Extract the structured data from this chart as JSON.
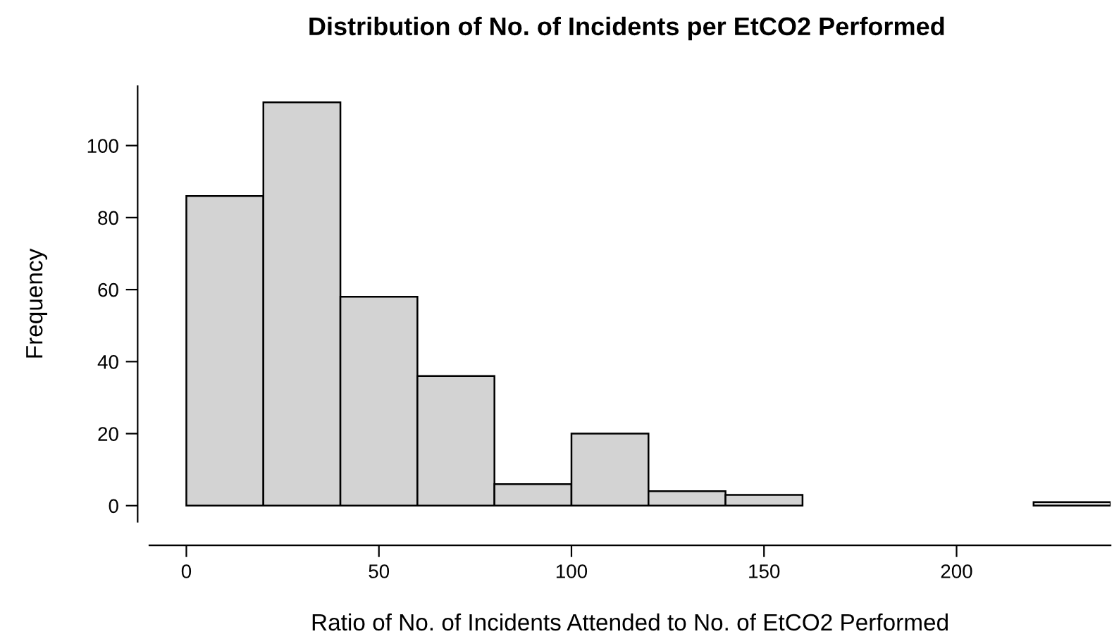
{
  "chart_data": {
    "type": "histogram",
    "title": "Distribution of No. of Incidents per EtCO2 Performed",
    "xlabel": "Ratio of No. of Incidents Attended to No. of EtCO2 Performed",
    "ylabel": "Frequency",
    "bins": [
      0,
      20,
      40,
      60,
      80,
      100,
      120,
      140,
      160,
      180,
      200,
      220,
      240
    ],
    "values": [
      86,
      112,
      58,
      36,
      6,
      20,
      4,
      3,
      0,
      0,
      0,
      1
    ],
    "color": "#d3d3d3",
    "xlim": [
      -9.6,
      240
    ],
    "xticks": [
      0,
      50,
      100,
      150,
      200
    ],
    "ylim": [
      -4.48,
      116.48
    ],
    "yticks": [
      0,
      20,
      40,
      60,
      80,
      100
    ],
    "grid": false
  }
}
